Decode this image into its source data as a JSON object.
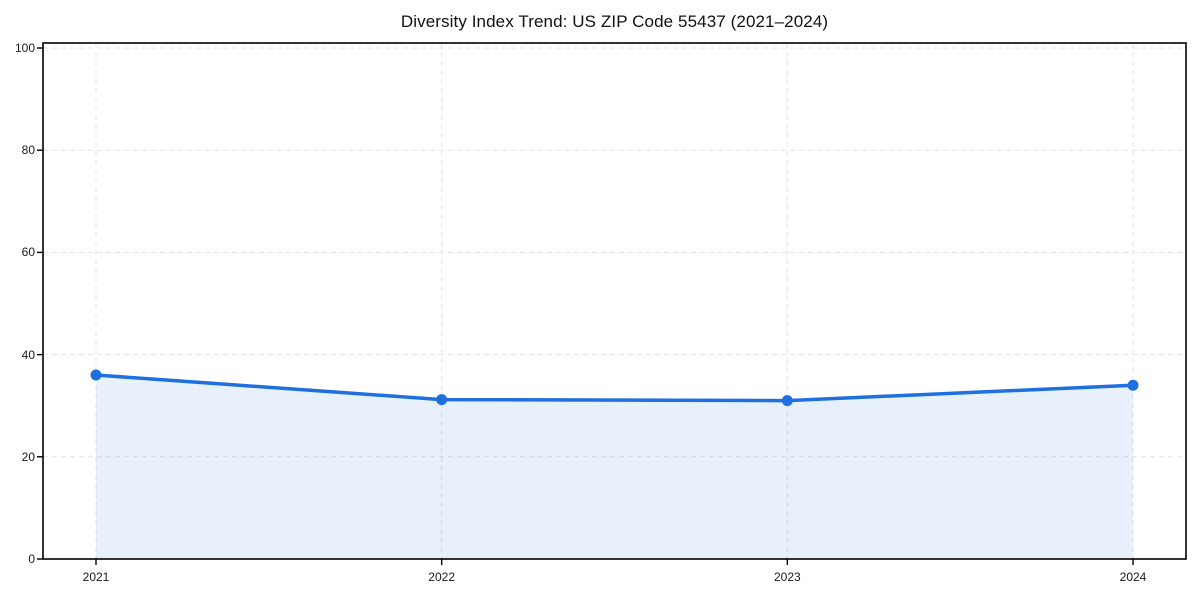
{
  "page": {
    "background": "#ffffff"
  },
  "chart_data": {
    "type": "area",
    "title": "Diversity Index Trend: US ZIP Code 55437 (2021–2024)",
    "categories": [
      "2021",
      "2022",
      "2023",
      "2024"
    ],
    "series": [
      {
        "name": "Diversity Index",
        "values": [
          36,
          31.2,
          31,
          34
        ]
      }
    ],
    "xlabel": "",
    "ylabel": "",
    "ylim": [
      0,
      100
    ],
    "yticks": [
      0,
      20,
      40,
      60,
      80,
      100
    ],
    "grid": true,
    "grid_style": "dashed",
    "legend": "none",
    "marker": "circle",
    "colors": {
      "line": "#1e6fe0",
      "marker": "#1e6fe0",
      "fill": "rgba(30,111,224,0.10)",
      "grid": "#e3e3e3",
      "axis": "#000000",
      "text": "#1a1a1a"
    }
  }
}
